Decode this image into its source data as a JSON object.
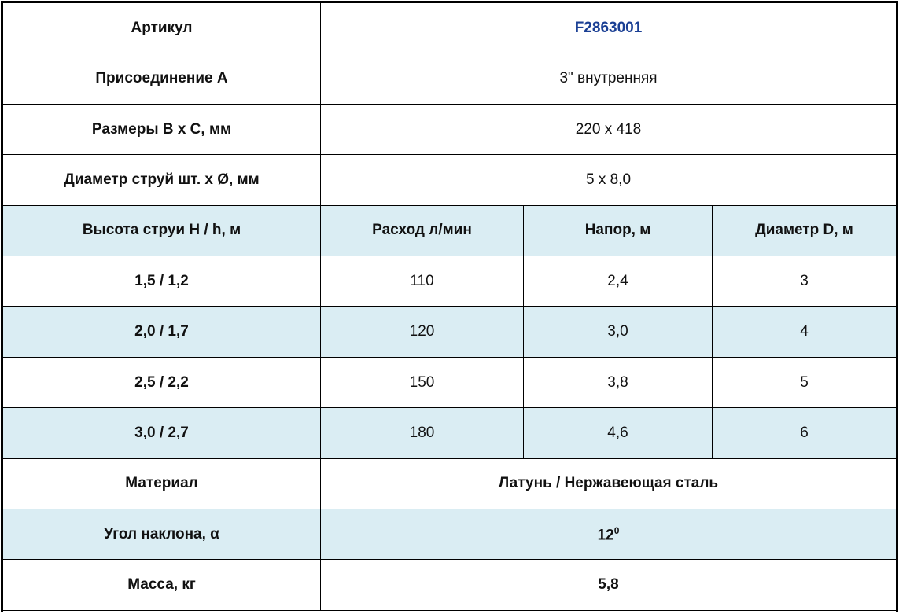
{
  "specs_top": [
    {
      "label": "Артикул",
      "value": "F2863001"
    },
    {
      "label": "Присоединение А",
      "value": "3\" внутренняя"
    },
    {
      "label": "Размеры B x C, мм",
      "value": "220 х 418"
    },
    {
      "label": "Диаметр струй шт. х Ø, мм",
      "value": "5 х 8,0"
    }
  ],
  "performance": {
    "headers": [
      "Высота струи H / h, м",
      "Расход л/мин",
      "Напор, м",
      "Диаметр D, м"
    ],
    "rows": [
      [
        "1,5 / 1,2",
        "110",
        "2,4",
        "3"
      ],
      [
        "2,0 / 1,7",
        "120",
        "3,0",
        "4"
      ],
      [
        "2,5 / 2,2",
        "150",
        "3,8",
        "5"
      ],
      [
        "3,0 / 2,7",
        "180",
        "4,6",
        "6"
      ]
    ]
  },
  "specs_bottom": [
    {
      "label": "Материал",
      "value": "Латунь / Нержавеющая сталь"
    },
    {
      "label": "Угол наклона, α",
      "value": "12",
      "superscript": "0"
    },
    {
      "label": "Масса, кг",
      "value": "5,8"
    }
  ],
  "colors": {
    "header_bg": "#daedf3",
    "article_text": "#1a3f94",
    "border": "#000000"
  }
}
